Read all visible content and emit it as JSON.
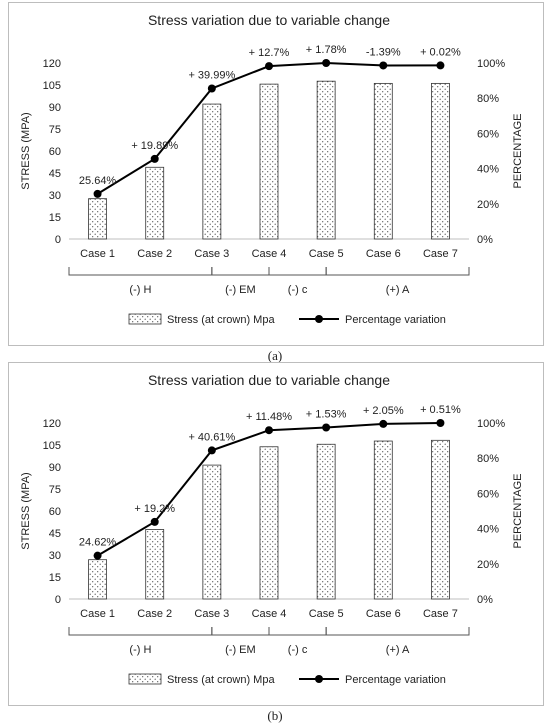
{
  "colors": {
    "bar_fill": "#ffffff",
    "bar_stroke": "#333333",
    "dot_pattern": "#444444",
    "line": "#000000",
    "grid": "#e3e3e3"
  },
  "chart_data": [
    {
      "panel_label": "(a)",
      "type": "bar",
      "title": "Stress variation due to variable change",
      "ylabel": "STRESS (MPA)",
      "y2label": "PERCENTAGE",
      "categories": [
        "Case 1",
        "Case 2",
        "Case 3",
        "Case 4",
        "Case 5",
        "Case 6",
        "Case 7"
      ],
      "ylim": [
        0,
        120
      ],
      "yticks": [
        "0",
        "15",
        "30",
        "45",
        "60",
        "75",
        "90",
        "105",
        "120"
      ],
      "y2lim": [
        0,
        100
      ],
      "y2ticks": [
        "0%",
        "20%",
        "40%",
        "60%",
        "80%",
        "100%"
      ],
      "series": [
        {
          "name": "Stress (at crown) Mpa",
          "type": "bar",
          "values": [
            27.5,
            48.9,
            92.0,
            105.6,
            107.6,
            106.1,
            106.1
          ]
        },
        {
          "name": "Percentage variation",
          "type": "line",
          "values": [
            25.64,
            45.53,
            85.52,
            98.22,
            100.0,
            98.61,
            98.63
          ]
        }
      ],
      "data_labels": [
        "25.64%",
        "+ 19.89%",
        "+ 39.99%",
        "+ 12.7%",
        "+ 1.78%",
        "-1.39%",
        "+ 0.02%"
      ],
      "groups": [
        {
          "label": "(-) H",
          "from": 1,
          "to": 3
        },
        {
          "label": "(-) EM",
          "from": 3,
          "to": 4
        },
        {
          "label": "(-) c",
          "from": 4,
          "to": 5
        },
        {
          "label": "(+) A",
          "from": 5,
          "to": 7
        }
      ],
      "legend_position": "bottom",
      "grid": false
    },
    {
      "panel_label": "(b)",
      "type": "bar",
      "title": "Stress variation due to variable change",
      "ylabel": "STRESS (MPA)",
      "y2label": "PERCENTAGE",
      "categories": [
        "Case 1",
        "Case 2",
        "Case 3",
        "Case 4",
        "Case 5",
        "Case 6",
        "Case 7"
      ],
      "ylim": [
        0,
        120
      ],
      "yticks": [
        "0",
        "15",
        "30",
        "45",
        "60",
        "75",
        "90",
        "105",
        "120"
      ],
      "y2lim": [
        0,
        100
      ],
      "y2ticks": [
        "0%",
        "20%",
        "40%",
        "60%",
        "80%",
        "100%"
      ],
      "series": [
        {
          "name": "Stress (at crown) Mpa",
          "type": "bar",
          "values": [
            26.8,
            47.4,
            91.3,
            103.8,
            105.5,
            107.7,
            108.2
          ]
        },
        {
          "name": "Percentage variation",
          "type": "line",
          "values": [
            24.62,
            43.82,
            84.43,
            95.91,
            97.44,
            99.49,
            100.0
          ]
        }
      ],
      "data_labels": [
        "24.62%",
        "+ 19.2%",
        "+ 40.61%",
        "+ 11.48%",
        "+ 1.53%",
        "+ 2.05%",
        "+ 0.51%"
      ],
      "groups": [
        {
          "label": "(-) H",
          "from": 1,
          "to": 3
        },
        {
          "label": "(-) EM",
          "from": 3,
          "to": 4
        },
        {
          "label": "(-) c",
          "from": 4,
          "to": 5
        },
        {
          "label": "(+) A",
          "from": 5,
          "to": 7
        }
      ],
      "legend_position": "bottom",
      "grid": false
    }
  ]
}
